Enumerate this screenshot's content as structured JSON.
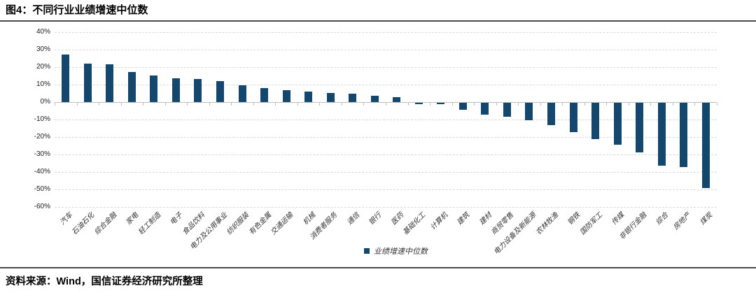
{
  "header": {
    "title": "图4：不同行业业绩增速中位数"
  },
  "footer": {
    "source": "资料来源：Wind，国信证券经济研究所整理"
  },
  "legend": {
    "label": "业绩增速中位数"
  },
  "chart_data": {
    "type": "bar",
    "title": "图4：不同行业业绩增速中位数",
    "series_name": "业绩增速中位数",
    "unit": "percent",
    "categories": [
      "汽车",
      "石油石化",
      "综合金融",
      "家电",
      "轻工制造",
      "电子",
      "食品饮料",
      "电力及公用事业",
      "纺织服装",
      "有色金属",
      "交通运输",
      "机械",
      "消费者服务",
      "通信",
      "银行",
      "医药",
      "基础化工",
      "计算机",
      "建筑",
      "建材",
      "商贸零售",
      "电力设备及新能源",
      "农林牧渔",
      "钢铁",
      "国防军工",
      "传媒",
      "非银行金融",
      "综合",
      "房地产",
      "煤炭"
    ],
    "values": [
      27,
      22,
      21.5,
      17,
      15,
      13.5,
      13,
      12,
      9.5,
      8,
      6.5,
      6,
      5,
      4.5,
      3.5,
      2.5,
      -1,
      -1,
      -4,
      -7,
      -8,
      -10,
      -13,
      -17,
      -21,
      -24,
      -28.5,
      -36,
      -37,
      -49
    ],
    "ylim": [
      -60,
      40
    ],
    "ytick_step": 10,
    "ytick_labels": [
      "40%",
      "30%",
      "20%",
      "10%",
      "0%",
      "-10%",
      "-20%",
      "-30%",
      "-40%",
      "-50%",
      "-60%"
    ],
    "grid": "horizontal-dashed",
    "legend_position": "bottom-center",
    "bar_color": "#14476e",
    "gridline_color": "#d9d9d9",
    "zero_axis_color": "#bfbfbf"
  }
}
